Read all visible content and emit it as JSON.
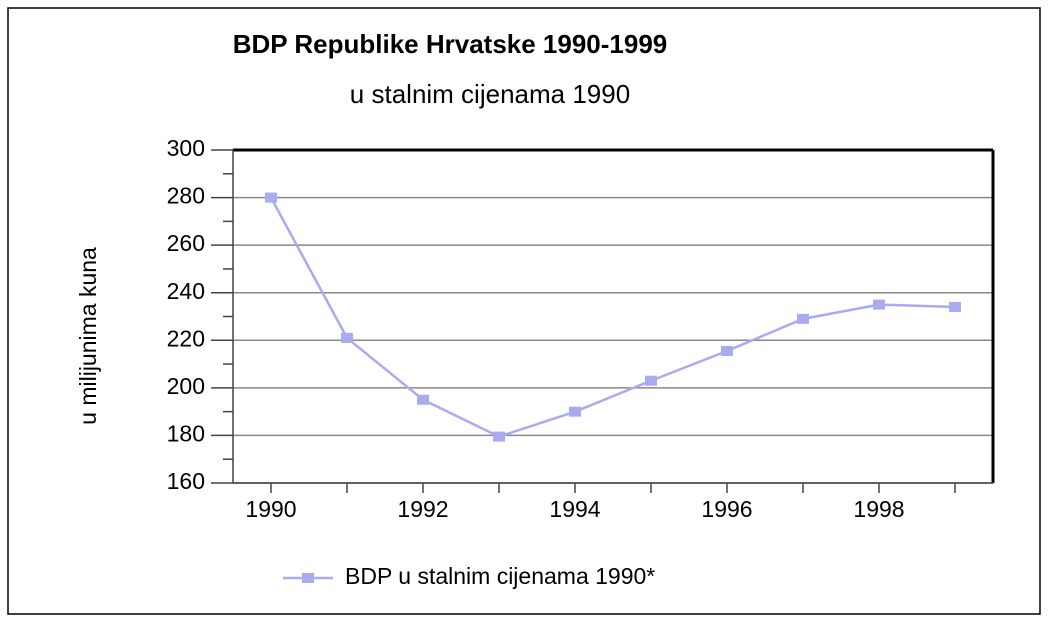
{
  "chart_data": {
    "type": "line",
    "title": "BDP Republike Hrvatske 1990-1999",
    "subtitle": "u stalnim cijenama 1990",
    "y_label": "u milijunima kuna",
    "categories": [
      "1990",
      null,
      "1992",
      null,
      "1994",
      null,
      "1996",
      null,
      "1998",
      null
    ],
    "series": [
      {
        "name": "BDP u stalnim cijenama 1990*",
        "color": "#aaaaee",
        "values": [
          280,
          221,
          195,
          179.5,
          190,
          203,
          215.5,
          229,
          235,
          234
        ]
      }
    ],
    "ylim": [
      160,
      300
    ],
    "yticks": [
      160,
      180,
      200,
      220,
      240,
      260,
      280,
      300
    ],
    "grid": true,
    "legend": "bottom"
  }
}
